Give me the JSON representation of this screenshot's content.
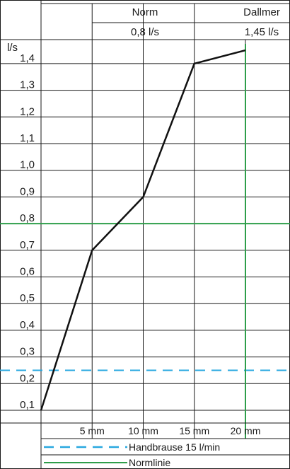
{
  "header": {
    "columns": [
      {
        "name": "Norm",
        "value": "0,8 l/s"
      },
      {
        "name": "Dallmer",
        "value": "1,45 l/s"
      }
    ]
  },
  "chart_data": {
    "type": "line",
    "ylabel": "l/s",
    "ylim": [
      0.1,
      1.45
    ],
    "y_ticks": [
      0.1,
      0.2,
      0.3,
      0.4,
      0.5,
      0.6,
      0.7,
      0.8,
      0.9,
      1.0,
      1.1,
      1.2,
      1.3,
      1.4
    ],
    "y_tick_labels": [
      "0,1",
      "0,2",
      "0,3",
      "0,4",
      "0,5",
      "0,6",
      "0,7",
      "0,8",
      "0,9",
      "1,0",
      "1,1",
      "1,2",
      "1,3",
      "1,4"
    ],
    "x_ticks": [
      0,
      5,
      10,
      15,
      20
    ],
    "x_tick_labels": [
      "",
      "5 mm",
      "10 mm",
      "15 mm",
      "20 mm"
    ],
    "xlim": [
      0,
      20
    ],
    "grid": true,
    "series": [
      {
        "x": [
          0,
          5,
          10,
          15,
          20
        ],
        "values": [
          0.1,
          0.7,
          0.9,
          1.4,
          1.45
        ],
        "color": "#111111"
      }
    ],
    "reference_lines": [
      {
        "axis": "y",
        "value": 0.25,
        "style": "dashed",
        "color": "#29a8e0",
        "label": "Handbrause 15 l/min"
      },
      {
        "axis": "y",
        "value": 0.8,
        "style": "solid",
        "color": "#2e9e4a",
        "label": "Normlinie"
      },
      {
        "axis": "x",
        "value": 20,
        "style": "solid",
        "color": "#2e9e4a"
      }
    ],
    "legend": {
      "position": "bottom",
      "entries": [
        {
          "label": "Handbrause 15 l/min",
          "style": "dashed",
          "color": "#29a8e0"
        },
        {
          "label": "Normlinie",
          "style": "solid",
          "color": "#2e9e4a"
        }
      ]
    }
  }
}
